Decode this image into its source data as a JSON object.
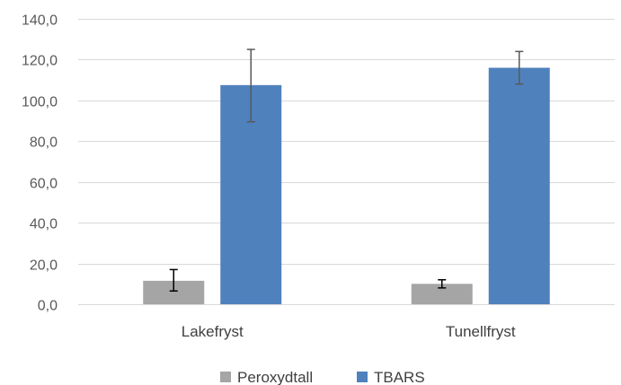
{
  "chart_data": {
    "type": "bar",
    "categories": [
      "Lakefryst",
      "Tunellfryst"
    ],
    "series": [
      {
        "name": "Peroxydtall",
        "color": "#A5A5A5",
        "values": [
          11.5,
          10.0
        ],
        "error": [
          [
            6.5,
            17.0
          ],
          [
            8.0,
            12.0
          ]
        ],
        "error_color": "#000000"
      },
      {
        "name": "TBARS",
        "color": "#4F81BD",
        "values": [
          107.5,
          116.0
        ],
        "error": [
          [
            89.5,
            125.0
          ],
          [
            108.0,
            124.0
          ]
        ],
        "error_color": "#595959"
      }
    ],
    "ylim": [
      0,
      140
    ],
    "yticks": [
      "0,0",
      "20,0",
      "40,0",
      "60,0",
      "80,0",
      "100,0",
      "120,0",
      "140,0"
    ],
    "ytick_values": [
      0,
      20,
      40,
      60,
      80,
      100,
      120,
      140
    ],
    "grid": true,
    "gridline_color": "#D9D9D9",
    "legend": "bottom",
    "title": "",
    "xlabel": "",
    "ylabel": ""
  }
}
